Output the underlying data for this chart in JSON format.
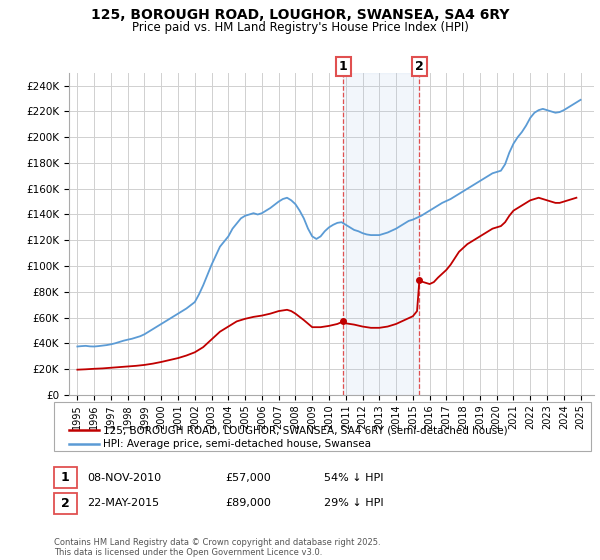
{
  "title": "125, BOROUGH ROAD, LOUGHOR, SWANSEA, SA4 6RY",
  "subtitle": "Price paid vs. HM Land Registry's House Price Index (HPI)",
  "hpi_label": "HPI: Average price, semi-detached house, Swansea",
  "property_label": "125, BOROUGH ROAD, LOUGHOR, SWANSEA, SA4 6RY (semi-detached house)",
  "annotation1": {
    "num": "1",
    "date": "08-NOV-2010",
    "price": "£57,000",
    "pct": "54% ↓ HPI",
    "x_year": 2010.86
  },
  "annotation2": {
    "num": "2",
    "date": "22-MAY-2015",
    "price": "£89,000",
    "pct": "29% ↓ HPI",
    "x_year": 2015.39
  },
  "sale1_price": 57000,
  "sale2_price": 89000,
  "ylim": [
    0,
    250000
  ],
  "yticks": [
    0,
    20000,
    40000,
    60000,
    80000,
    100000,
    120000,
    140000,
    160000,
    180000,
    200000,
    220000,
    240000
  ],
  "xlim": [
    1994.5,
    2025.8
  ],
  "hpi_color": "#5b9bd5",
  "property_color": "#c00000",
  "dashed_color": "#e05050",
  "shade_color": "#adc8e8",
  "background_color": "#ffffff",
  "grid_color": "#d0d0d0",
  "copyright_text": "Contains HM Land Registry data © Crown copyright and database right 2025.\nThis data is licensed under the Open Government Licence v3.0.",
  "hpi_data": [
    [
      1995.0,
      37500
    ],
    [
      1995.25,
      37800
    ],
    [
      1995.5,
      38000
    ],
    [
      1995.75,
      37600
    ],
    [
      1996.0,
      37500
    ],
    [
      1996.25,
      37800
    ],
    [
      1996.5,
      38200
    ],
    [
      1996.75,
      38600
    ],
    [
      1997.0,
      39200
    ],
    [
      1997.25,
      40000
    ],
    [
      1997.5,
      41000
    ],
    [
      1997.75,
      42000
    ],
    [
      1998.0,
      42800
    ],
    [
      1998.25,
      43500
    ],
    [
      1998.5,
      44500
    ],
    [
      1998.75,
      45500
    ],
    [
      1999.0,
      47000
    ],
    [
      1999.25,
      49000
    ],
    [
      1999.5,
      51000
    ],
    [
      1999.75,
      53000
    ],
    [
      2000.0,
      55000
    ],
    [
      2000.25,
      57000
    ],
    [
      2000.5,
      59000
    ],
    [
      2000.75,
      61000
    ],
    [
      2001.0,
      63000
    ],
    [
      2001.25,
      65000
    ],
    [
      2001.5,
      67000
    ],
    [
      2001.75,
      69500
    ],
    [
      2002.0,
      72000
    ],
    [
      2002.25,
      78000
    ],
    [
      2002.5,
      85000
    ],
    [
      2002.75,
      93000
    ],
    [
      2003.0,
      101000
    ],
    [
      2003.25,
      108000
    ],
    [
      2003.5,
      115000
    ],
    [
      2003.75,
      119000
    ],
    [
      2004.0,
      123000
    ],
    [
      2004.25,
      129000
    ],
    [
      2004.5,
      133000
    ],
    [
      2004.75,
      137000
    ],
    [
      2005.0,
      139000
    ],
    [
      2005.25,
      140000
    ],
    [
      2005.5,
      141000
    ],
    [
      2005.75,
      140000
    ],
    [
      2006.0,
      141000
    ],
    [
      2006.25,
      143000
    ],
    [
      2006.5,
      145000
    ],
    [
      2006.75,
      147500
    ],
    [
      2007.0,
      150000
    ],
    [
      2007.25,
      152000
    ],
    [
      2007.5,
      153000
    ],
    [
      2007.75,
      151000
    ],
    [
      2008.0,
      148000
    ],
    [
      2008.25,
      143000
    ],
    [
      2008.5,
      137000
    ],
    [
      2008.75,
      129000
    ],
    [
      2009.0,
      123000
    ],
    [
      2009.25,
      121000
    ],
    [
      2009.5,
      123000
    ],
    [
      2009.75,
      127000
    ],
    [
      2010.0,
      130000
    ],
    [
      2010.25,
      132000
    ],
    [
      2010.5,
      133500
    ],
    [
      2010.75,
      134000
    ],
    [
      2011.0,
      132000
    ],
    [
      2011.25,
      130000
    ],
    [
      2011.5,
      128000
    ],
    [
      2011.75,
      127000
    ],
    [
      2012.0,
      125500
    ],
    [
      2012.25,
      124500
    ],
    [
      2012.5,
      124000
    ],
    [
      2012.75,
      124000
    ],
    [
      2013.0,
      124000
    ],
    [
      2013.25,
      125000
    ],
    [
      2013.5,
      126000
    ],
    [
      2013.75,
      127500
    ],
    [
      2014.0,
      129000
    ],
    [
      2014.25,
      131000
    ],
    [
      2014.5,
      133000
    ],
    [
      2014.75,
      135000
    ],
    [
      2015.0,
      136000
    ],
    [
      2015.25,
      137500
    ],
    [
      2015.5,
      139000
    ],
    [
      2015.75,
      141000
    ],
    [
      2016.0,
      143000
    ],
    [
      2016.25,
      145000
    ],
    [
      2016.5,
      147000
    ],
    [
      2016.75,
      149000
    ],
    [
      2017.0,
      150500
    ],
    [
      2017.25,
      152000
    ],
    [
      2017.5,
      154000
    ],
    [
      2017.75,
      156000
    ],
    [
      2018.0,
      158000
    ],
    [
      2018.25,
      160000
    ],
    [
      2018.5,
      162000
    ],
    [
      2018.75,
      164000
    ],
    [
      2019.0,
      166000
    ],
    [
      2019.25,
      168000
    ],
    [
      2019.5,
      170000
    ],
    [
      2019.75,
      172000
    ],
    [
      2020.0,
      173000
    ],
    [
      2020.25,
      174000
    ],
    [
      2020.5,
      179000
    ],
    [
      2020.75,
      188000
    ],
    [
      2021.0,
      195000
    ],
    [
      2021.25,
      200000
    ],
    [
      2021.5,
      204000
    ],
    [
      2021.75,
      209000
    ],
    [
      2022.0,
      215000
    ],
    [
      2022.25,
      219000
    ],
    [
      2022.5,
      221000
    ],
    [
      2022.75,
      222000
    ],
    [
      2023.0,
      221000
    ],
    [
      2023.25,
      220000
    ],
    [
      2023.5,
      219000
    ],
    [
      2023.75,
      219500
    ],
    [
      2024.0,
      221000
    ],
    [
      2024.25,
      223000
    ],
    [
      2024.5,
      225000
    ],
    [
      2024.75,
      227000
    ],
    [
      2025.0,
      229000
    ]
  ],
  "property_data": [
    [
      1995.0,
      19500
    ],
    [
      1995.5,
      19800
    ],
    [
      1996.0,
      20200
    ],
    [
      1996.5,
      20500
    ],
    [
      1997.0,
      21000
    ],
    [
      1997.5,
      21500
    ],
    [
      1998.0,
      22000
    ],
    [
      1998.5,
      22500
    ],
    [
      1999.0,
      23200
    ],
    [
      1999.5,
      24200
    ],
    [
      2000.0,
      25500
    ],
    [
      2000.5,
      27000
    ],
    [
      2001.0,
      28500
    ],
    [
      2001.5,
      30500
    ],
    [
      2002.0,
      33000
    ],
    [
      2002.5,
      37000
    ],
    [
      2003.0,
      43000
    ],
    [
      2003.5,
      49000
    ],
    [
      2004.0,
      53000
    ],
    [
      2004.5,
      57000
    ],
    [
      2005.0,
      59000
    ],
    [
      2005.5,
      60500
    ],
    [
      2006.0,
      61500
    ],
    [
      2006.5,
      63000
    ],
    [
      2007.0,
      65000
    ],
    [
      2007.5,
      66000
    ],
    [
      2007.75,
      65000
    ],
    [
      2008.0,
      63000
    ],
    [
      2008.5,
      58000
    ],
    [
      2009.0,
      52500
    ],
    [
      2009.5,
      52500
    ],
    [
      2010.0,
      53500
    ],
    [
      2010.5,
      55000
    ],
    [
      2010.86,
      57000
    ],
    [
      2011.0,
      55500
    ],
    [
      2011.5,
      54500
    ],
    [
      2012.0,
      53000
    ],
    [
      2012.5,
      52000
    ],
    [
      2013.0,
      52000
    ],
    [
      2013.5,
      53000
    ],
    [
      2014.0,
      55000
    ],
    [
      2014.5,
      58000
    ],
    [
      2015.0,
      61000
    ],
    [
      2015.25,
      65000
    ],
    [
      2015.39,
      89000
    ],
    [
      2015.5,
      88000
    ],
    [
      2015.75,
      87000
    ],
    [
      2016.0,
      86000
    ],
    [
      2016.25,
      87500
    ],
    [
      2016.5,
      91000
    ],
    [
      2016.75,
      94000
    ],
    [
      2017.0,
      97000
    ],
    [
      2017.25,
      101000
    ],
    [
      2017.5,
      106000
    ],
    [
      2017.75,
      111000
    ],
    [
      2018.0,
      114000
    ],
    [
      2018.25,
      117000
    ],
    [
      2018.5,
      119000
    ],
    [
      2018.75,
      121000
    ],
    [
      2019.0,
      123000
    ],
    [
      2019.25,
      125000
    ],
    [
      2019.5,
      127000
    ],
    [
      2019.75,
      129000
    ],
    [
      2020.0,
      130000
    ],
    [
      2020.25,
      131000
    ],
    [
      2020.5,
      134000
    ],
    [
      2020.75,
      139000
    ],
    [
      2021.0,
      143000
    ],
    [
      2021.25,
      145000
    ],
    [
      2021.5,
      147000
    ],
    [
      2021.75,
      149000
    ],
    [
      2022.0,
      151000
    ],
    [
      2022.25,
      152000
    ],
    [
      2022.5,
      153000
    ],
    [
      2022.75,
      152000
    ],
    [
      2023.0,
      151000
    ],
    [
      2023.25,
      150000
    ],
    [
      2023.5,
      149000
    ],
    [
      2023.75,
      149000
    ],
    [
      2024.0,
      150000
    ],
    [
      2024.25,
      151000
    ],
    [
      2024.5,
      152000
    ],
    [
      2024.75,
      153000
    ]
  ]
}
